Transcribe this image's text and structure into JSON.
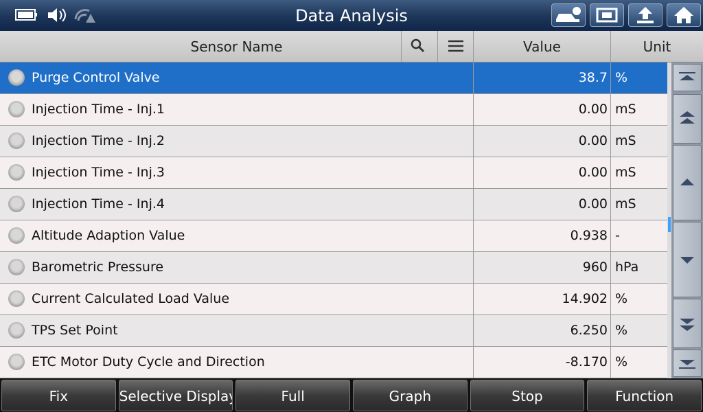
{
  "header": {
    "title": "Data Analysis"
  },
  "table": {
    "columns": [
      "Sensor Name",
      "Value",
      "Unit"
    ],
    "rows": [
      [
        "Purge Control Valve",
        "38.7",
        "%"
      ],
      [
        "Injection Time - Inj.1",
        "0.00",
        "mS"
      ],
      [
        "Injection Time - Inj.2",
        "0.00",
        "mS"
      ],
      [
        "Injection Time - Inj.3",
        "0.00",
        "mS"
      ],
      [
        "Injection Time - Inj.4",
        "0.00",
        "mS"
      ],
      [
        "Altitude Adaption Value",
        "0.938",
        "-"
      ],
      [
        "Barometric Pressure",
        "960",
        "hPa"
      ],
      [
        "Current Calculated Load Value",
        "14.902",
        "%"
      ],
      [
        "TPS Set Point",
        "6.250",
        "%"
      ],
      [
        "ETC Motor Duty Cycle and Direction",
        "-8.170",
        "%"
      ]
    ]
  },
  "footer": {
    "buttons": [
      "Fix",
      "Selective Display",
      "Full",
      "Graph",
      "Stop",
      "Function"
    ]
  }
}
